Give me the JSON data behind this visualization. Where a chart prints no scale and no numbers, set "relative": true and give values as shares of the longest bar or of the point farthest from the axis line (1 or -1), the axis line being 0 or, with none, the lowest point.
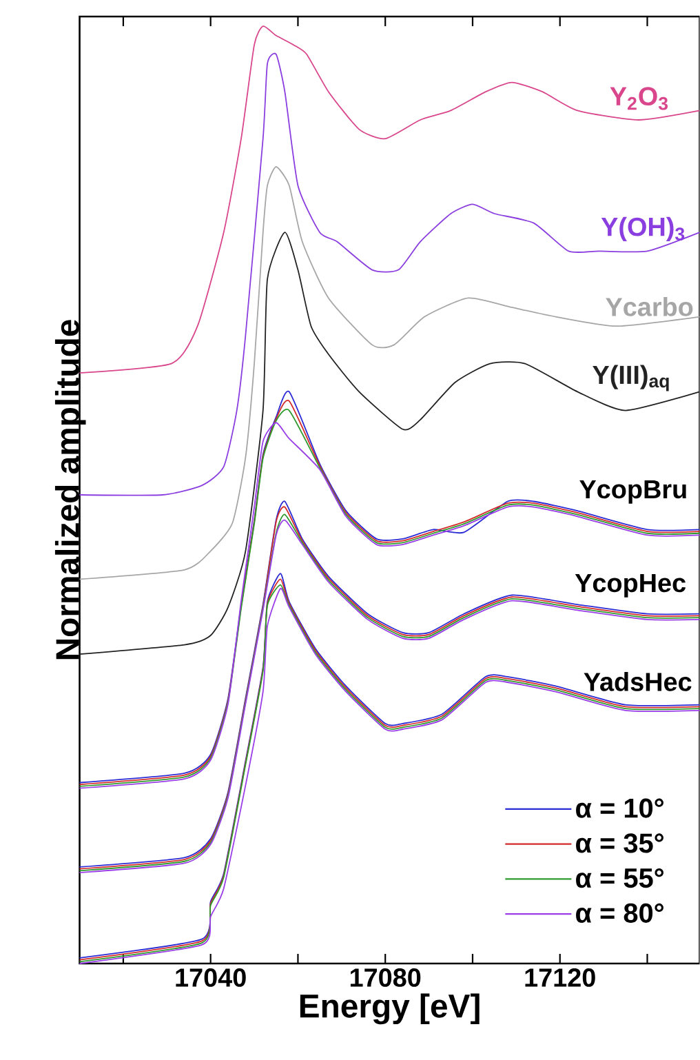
{
  "chart_data": {
    "type": "line",
    "relative": true,
    "xlabel": "Energy [eV]",
    "ylabel": "Normalized amplitude",
    "xlim": [
      17010,
      17152
    ],
    "xticks": [
      {
        "value": 17020,
        "label": null
      },
      17040,
      {
        "value": 17060,
        "label": null
      },
      17080,
      {
        "value": 17100,
        "label": null
      },
      17120,
      {
        "value": 17140,
        "label": null
      }
    ],
    "legend": "bottom right",
    "series": [
      {
        "color": "#d9468c",
        "x": [
          17010,
          17031,
          17037,
          17043,
          17047,
          17050,
          17052,
          17055,
          17059,
          17062,
          17067,
          17074,
          17080,
          17088,
          17095,
          17103,
          17109,
          17116,
          17124,
          17138,
          17152
        ],
        "values": [
          0.63,
          0.64,
          0.68,
          0.78,
          0.88,
          0.98,
          1.0,
          0.99,
          0.98,
          0.97,
          0.93,
          0.89,
          0.88,
          0.9,
          0.91,
          0.93,
          0.94,
          0.93,
          0.91,
          0.9,
          0.91
        ]
      },
      {
        "color": "#8a3ee0",
        "x": [
          17010,
          17029,
          17038,
          17043,
          17046,
          17048,
          17052,
          17053,
          17055,
          17057,
          17060,
          17065,
          17069,
          17077,
          17083,
          17088,
          17095,
          17100,
          17105,
          17114,
          17122,
          17129,
          17140,
          17152
        ],
        "values": [
          0.5,
          0.5,
          0.51,
          0.53,
          0.59,
          0.67,
          0.88,
          0.96,
          0.97,
          0.93,
          0.83,
          0.78,
          0.77,
          0.74,
          0.74,
          0.77,
          0.8,
          0.81,
          0.8,
          0.79,
          0.76,
          0.76,
          0.76,
          0.78
        ]
      },
      {
        "color": "#a6a6a6",
        "x": [
          17010,
          17034,
          17040,
          17045,
          17048,
          17050,
          17052,
          17053,
          17055,
          17058,
          17061,
          17067,
          17077,
          17082,
          17089,
          17099,
          17109,
          17119,
          17133,
          17152
        ],
        "values": [
          0.41,
          0.42,
          0.44,
          0.47,
          0.54,
          0.64,
          0.78,
          0.83,
          0.85,
          0.83,
          0.77,
          0.71,
          0.66,
          0.66,
          0.69,
          0.71,
          0.7,
          0.69,
          0.68,
          0.69
        ]
      },
      {
        "color": "#222222",
        "x": [
          17010,
          17034,
          17040,
          17044,
          17048,
          17052,
          17053,
          17057,
          17060,
          17063,
          17067,
          17074,
          17084,
          17088,
          17096,
          17104,
          17112,
          17124,
          17135,
          17152
        ],
        "values": [
          0.33,
          0.34,
          0.35,
          0.38,
          0.44,
          0.59,
          0.73,
          0.78,
          0.74,
          0.68,
          0.65,
          0.61,
          0.57,
          0.58,
          0.62,
          0.64,
          0.64,
          0.61,
          0.59,
          0.61
        ]
      },
      {
        "name": "α = 10°",
        "color": "#2b2bd6",
        "x": [
          17010,
          17034,
          17040,
          17044,
          17047,
          17050,
          17052,
          17055,
          17058,
          17065,
          17071,
          17078,
          17084,
          17091,
          17098,
          17108,
          17114,
          17124,
          17140,
          17152
        ],
        "values": [
          0.193,
          0.203,
          0.223,
          0.283,
          0.383,
          0.473,
          0.543,
          0.583,
          0.61,
          0.533,
          0.483,
          0.453,
          0.453,
          0.463,
          0.46,
          0.493,
          0.493,
          0.483,
          0.463,
          0.463
        ]
      },
      {
        "name": "α = 35°",
        "color": "#d42a2a",
        "x": [
          17010,
          17034,
          17040,
          17044,
          17047,
          17050,
          17052,
          17055,
          17058,
          17065,
          17071,
          17078,
          17084,
          17091,
          17098,
          17108,
          17114,
          17124,
          17140,
          17152
        ],
        "values": [
          0.191,
          0.201,
          0.221,
          0.281,
          0.381,
          0.471,
          0.541,
          0.581,
          0.6,
          0.531,
          0.481,
          0.451,
          0.451,
          0.461,
          0.471,
          0.491,
          0.491,
          0.481,
          0.461,
          0.461
        ]
      },
      {
        "name": "α = 55°",
        "color": "#2e9a2e",
        "x": [
          17010,
          17034,
          17040,
          17044,
          17047,
          17050,
          17052,
          17055,
          17058,
          17065,
          17071,
          17078,
          17084,
          17091,
          17098,
          17108,
          17114,
          17124,
          17140,
          17152
        ],
        "values": [
          0.189,
          0.199,
          0.219,
          0.279,
          0.379,
          0.469,
          0.539,
          0.579,
          0.59,
          0.529,
          0.479,
          0.449,
          0.449,
          0.459,
          0.469,
          0.489,
          0.489,
          0.479,
          0.459,
          0.459
        ]
      },
      {
        "name": "α = 80°",
        "color": "#9a3ee8",
        "x": [
          17010,
          17034,
          17040,
          17044,
          17047,
          17050,
          17052,
          17055,
          17058,
          17065,
          17071,
          17078,
          17084,
          17091,
          17098,
          17108,
          17114,
          17124,
          17140,
          17152
        ],
        "values": [
          0.187,
          0.197,
          0.217,
          0.277,
          0.387,
          0.487,
          0.557,
          0.577,
          0.56,
          0.527,
          0.477,
          0.447,
          0.447,
          0.457,
          0.467,
          0.487,
          0.487,
          0.477,
          0.457,
          0.457
        ]
      },
      {
        "color": "#2b2bd6",
        "x": [
          17010,
          17034,
          17040,
          17044,
          17048,
          17052,
          17055,
          17057,
          17061,
          17067,
          17076,
          17084,
          17090,
          17098,
          17109,
          17124,
          17140,
          17152
        ],
        "values": [
          0.103,
          0.113,
          0.133,
          0.183,
          0.283,
          0.383,
          0.473,
          0.493,
          0.453,
          0.413,
          0.373,
          0.353,
          0.353,
          0.373,
          0.393,
          0.383,
          0.373,
          0.373
        ]
      },
      {
        "color": "#d42a2a",
        "x": [
          17010,
          17034,
          17040,
          17044,
          17048,
          17052,
          17055,
          17057,
          17061,
          17067,
          17076,
          17084,
          17090,
          17098,
          17109,
          17124,
          17140,
          17152
        ],
        "values": [
          0.101,
          0.111,
          0.131,
          0.181,
          0.281,
          0.381,
          0.471,
          0.487,
          0.451,
          0.411,
          0.371,
          0.351,
          0.351,
          0.371,
          0.391,
          0.381,
          0.371,
          0.371
        ]
      },
      {
        "color": "#2e9a2e",
        "x": [
          17010,
          17034,
          17040,
          17044,
          17048,
          17052,
          17055,
          17057,
          17061,
          17067,
          17076,
          17084,
          17090,
          17098,
          17109,
          17124,
          17140,
          17152
        ],
        "values": [
          0.099,
          0.109,
          0.129,
          0.179,
          0.279,
          0.379,
          0.459,
          0.479,
          0.449,
          0.409,
          0.369,
          0.349,
          0.349,
          0.369,
          0.389,
          0.379,
          0.369,
          0.369
        ]
      },
      {
        "color": "#9a3ee8",
        "x": [
          17010,
          17034,
          17040,
          17044,
          17048,
          17052,
          17055,
          17057,
          17061,
          17067,
          17076,
          17084,
          17090,
          17098,
          17109,
          17124,
          17140,
          17152
        ],
        "values": [
          0.097,
          0.107,
          0.127,
          0.177,
          0.277,
          0.377,
          0.457,
          0.473,
          0.447,
          0.407,
          0.367,
          0.347,
          0.347,
          0.367,
          0.387,
          0.377,
          0.367,
          0.367
        ]
      },
      {
        "color": "#2b2bd6",
        "x": [
          17010,
          17038,
          17040,
          17043,
          17048,
          17052,
          17053,
          17056,
          17058,
          17064,
          17071,
          17080,
          17084,
          17093,
          17103,
          17108,
          17119,
          17135,
          17152
        ],
        "values": [
          0.006,
          0.026,
          0.066,
          0.096,
          0.216,
          0.316,
          0.386,
          0.416,
          0.386,
          0.336,
          0.296,
          0.256,
          0.256,
          0.266,
          0.306,
          0.306,
          0.296,
          0.276,
          0.276
        ]
      },
      {
        "color": "#d42a2a",
        "x": [
          17010,
          17038,
          17040,
          17043,
          17048,
          17052,
          17053,
          17056,
          17058,
          17064,
          17071,
          17080,
          17084,
          17093,
          17103,
          17108,
          17119,
          17135,
          17152
        ],
        "values": [
          0.004,
          0.024,
          0.064,
          0.094,
          0.214,
          0.314,
          0.384,
          0.41,
          0.384,
          0.334,
          0.294,
          0.254,
          0.254,
          0.264,
          0.304,
          0.304,
          0.294,
          0.274,
          0.274
        ]
      },
      {
        "color": "#2e9a2e",
        "x": [
          17010,
          17038,
          17040,
          17043,
          17048,
          17052,
          17053,
          17056,
          17058,
          17064,
          17071,
          17080,
          17084,
          17093,
          17103,
          17108,
          17119,
          17135,
          17152
        ],
        "values": [
          0.002,
          0.022,
          0.062,
          0.092,
          0.212,
          0.312,
          0.382,
          0.404,
          0.382,
          0.332,
          0.292,
          0.252,
          0.252,
          0.262,
          0.302,
          0.302,
          0.292,
          0.272,
          0.272
        ]
      },
      {
        "color": "#9a3ee8",
        "x": [
          17010,
          17038,
          17040,
          17043,
          17048,
          17052,
          17053,
          17056,
          17058,
          17064,
          17071,
          17080,
          17084,
          17093,
          17103,
          17108,
          17119,
          17135,
          17152
        ],
        "values": [
          0.0,
          0.02,
          0.05,
          0.08,
          0.19,
          0.29,
          0.36,
          0.4,
          0.38,
          0.33,
          0.29,
          0.25,
          0.25,
          0.26,
          0.3,
          0.3,
          0.29,
          0.27,
          0.27
        ]
      }
    ],
    "annotations": [
      {
        "text": "Y$_{2}$O$_{3}$",
        "x": 17131,
        "y": 0.9
      },
      {
        "text": "Y(OH)$_{3}$",
        "x": 17129,
        "y": 0.76
      },
      {
        "text": "Ycarbo",
        "x": 17130,
        "y": 0.68
      },
      {
        "text": "Y(III)$_{aq}$",
        "x": 17127,
        "y": 0.6
      },
      {
        "text": "YcopBru",
        "x": 17124,
        "y": 0.48
      },
      {
        "text": "YcopHec",
        "x": 17123,
        "y": 0.38
      },
      {
        "text": "YadsHec",
        "x": 17125,
        "y": 0.28
      }
    ]
  }
}
